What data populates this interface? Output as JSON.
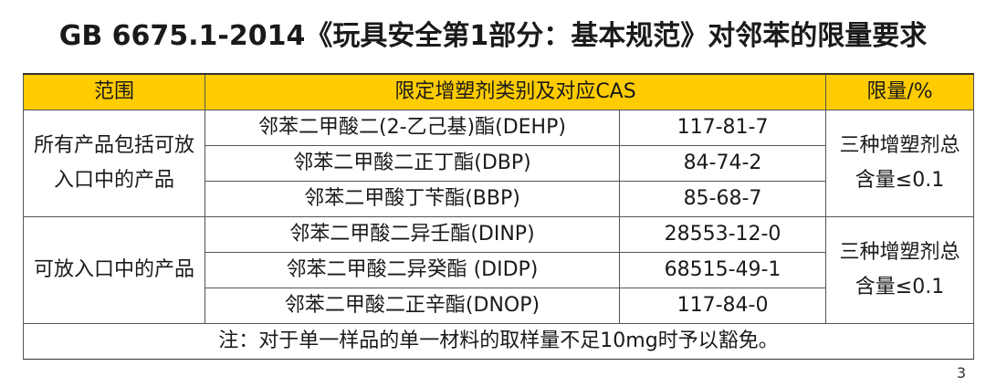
{
  "title": "GB 6675.1-2014《玩具安全第1部分：基本规范》对邻苯的限量要求",
  "table": {
    "headers": {
      "scope": "范围",
      "substance": "限定增塑剂类别及对应CAS",
      "limit": "限量/%"
    },
    "groups": [
      {
        "scope": "所有产品包括可放入口中的产品",
        "limit": "三种增塑剂总含量≤0.1",
        "rows": [
          {
            "name": "邻苯二甲酸二(2-乙己基)酯(DEHP)",
            "cas": "117-81-7"
          },
          {
            "name": "邻苯二甲酸二正丁酯(DBP)",
            "cas": "84-74-2"
          },
          {
            "name": "邻苯二甲酸丁苄酯(BBP)",
            "cas": "85-68-7"
          }
        ]
      },
      {
        "scope": "可放入口中的产品",
        "limit": "三种增塑剂总含量≤0.1",
        "rows": [
          {
            "name": "邻苯二甲酸二异壬酯(DINP)",
            "cas": "28553-12-0"
          },
          {
            "name": "邻苯二甲酸二异癸酯 (DIDP)",
            "cas": "68515-49-1"
          },
          {
            "name": "邻苯二甲酸二正辛酯(DNOP)",
            "cas": "117-84-0"
          }
        ]
      }
    ],
    "note": "注：对于单一样品的单一材料的取样量不足10mg时予以豁免。"
  },
  "page_number": "3"
}
